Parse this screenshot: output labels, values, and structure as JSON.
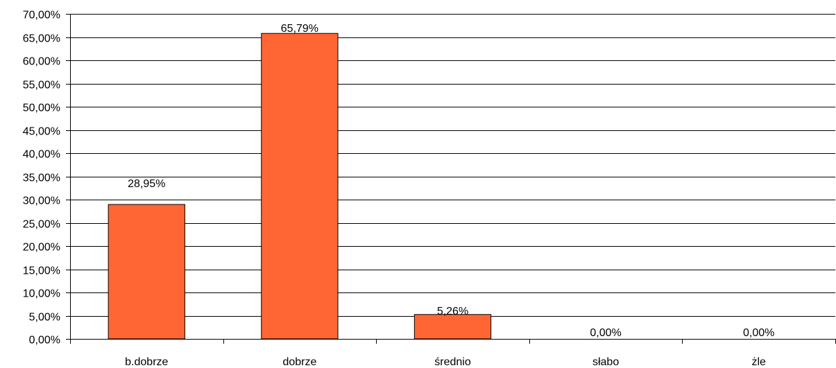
{
  "chart_data": {
    "type": "bar",
    "categories": [
      "b.dobrze",
      "dobrze",
      "średnio",
      "słabo",
      "żle"
    ],
    "values": [
      28.95,
      65.79,
      5.26,
      0.0,
      0.0
    ],
    "data_labels": [
      "28,95%",
      "65,79%",
      "5,26%",
      "0,00%",
      "0,00%"
    ],
    "ylim": [
      0,
      70
    ],
    "y_ticks": [
      0,
      5,
      10,
      15,
      20,
      25,
      30,
      35,
      40,
      45,
      50,
      55,
      60,
      65,
      70
    ],
    "y_tick_labels": [
      "0,00%",
      "5,00%",
      "10,00%",
      "15,00%",
      "20,00%",
      "25,00%",
      "30,00%",
      "35,00%",
      "40,00%",
      "45,00%",
      "50,00%",
      "55,00%",
      "60,00%",
      "65,00%",
      "70,00%"
    ],
    "grid": true,
    "legend": "none",
    "bar_color": "#FF6633",
    "title": "",
    "xlabel": "",
    "ylabel": ""
  }
}
